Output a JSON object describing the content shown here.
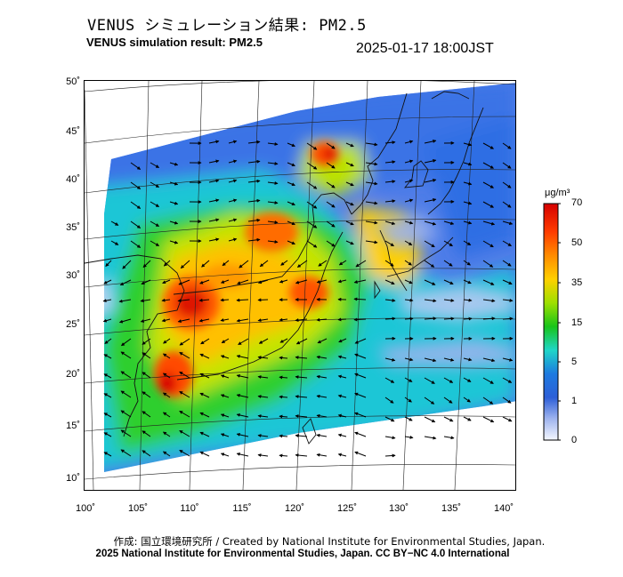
{
  "title_jp": "VENUS シミュレーション結果: PM2.5",
  "title_en": "VENUS simulation result: PM2.5",
  "timestamp": "2025-01-17 18:00JST",
  "lat_ticks": [
    "50˚",
    "45˚",
    "40˚",
    "35˚",
    "30˚",
    "25˚",
    "20˚",
    "15˚",
    "10˚"
  ],
  "lon_ticks": [
    "100˚",
    "105˚",
    "110˚",
    "115˚",
    "120˚",
    "125˚",
    "130˚",
    "135˚",
    "140˚"
  ],
  "colorbar": {
    "unit": "μg/m³",
    "labels": [
      "70",
      "50",
      "35",
      "15",
      "5",
      "1",
      "0"
    ],
    "colors": [
      "#d50000",
      "#ff6a00",
      "#ffc000",
      "#9ee000",
      "#18c41a",
      "#1fd6c8",
      "#1e6bdc",
      "#6f8ff0",
      "#c9d6f8",
      "#f4f7ff"
    ]
  },
  "credit_jp": "作成: 国立環境研究所 / Created by National Institute for Environmental Studies, Japan.",
  "credit_en": "2025 National Institute for Environmental Studies, Japan. CC BY−NC 4.0 International"
}
